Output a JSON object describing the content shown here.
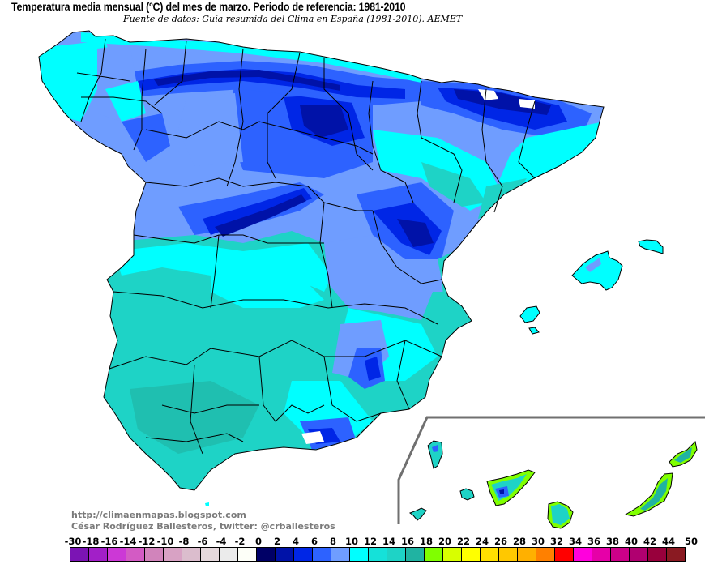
{
  "header": {
    "title": "Temperatura media mensual (ºC) del mes de marzo. Periodo de referencia: 1981-2010",
    "subtitle": "Fuente de datos: Guía resumida del Clima en España (1981-2010). AEMET"
  },
  "credits": {
    "url": "http://climaenmapas.blogspot.com",
    "author": "César Rodríguez Ballesteros, twitter: @crballesteros"
  },
  "map": {
    "region": "Spain (Peninsula, Balearic Islands, Canary Islands inset)",
    "variable": "Mean monthly temperature (ºC), March",
    "reference_period": "1981-2010",
    "zone_colors": {
      "below_zero": "#ffffff",
      "t0_2": "#000066",
      "t2_4": "#0012a8",
      "t4_6": "#0026e6",
      "t6_8": "#2d62ff",
      "t8_10": "#6f9dff",
      "t10_12": "#00ffff",
      "t12_14": "#15e1d9",
      "t14_16": "#1ed3c6",
      "t16_18": "#20b3a2",
      "t18_20": "#80ff00"
    },
    "border_color": "#000000",
    "inset_frame_color": "#707070"
  },
  "legend": {
    "labels": [
      "-30",
      "-18",
      "-16",
      "-14",
      "-12",
      "-10",
      "-8",
      "-6",
      "-4",
      "-2",
      "0",
      "2",
      "4",
      "6",
      "8",
      "10",
      "12",
      "14",
      "16",
      "18",
      "20",
      "22",
      "24",
      "26",
      "28",
      "30",
      "32",
      "34",
      "36",
      "38",
      "40",
      "42",
      "44",
      "50"
    ],
    "colors": [
      "#7b14b4",
      "#a21fc8",
      "#cc38d6",
      "#d35bc4",
      "#d184bb",
      "#d8a2c4",
      "#dbbdcd",
      "#e5d8dc",
      "#ebebeb",
      "#fdfff8",
      "#000066",
      "#0012a8",
      "#0026e6",
      "#2d62ff",
      "#6f9dff",
      "#00ffff",
      "#15e1d9",
      "#1ed3c6",
      "#20b3a2",
      "#80ff00",
      "#d8ff00",
      "#ffff00",
      "#ffe000",
      "#ffc800",
      "#ffb000",
      "#ff8000",
      "#ff0000",
      "#ff00dd",
      "#e600a8",
      "#cc0088",
      "#b00070",
      "#98003c",
      "#8a1a22"
    ]
  }
}
